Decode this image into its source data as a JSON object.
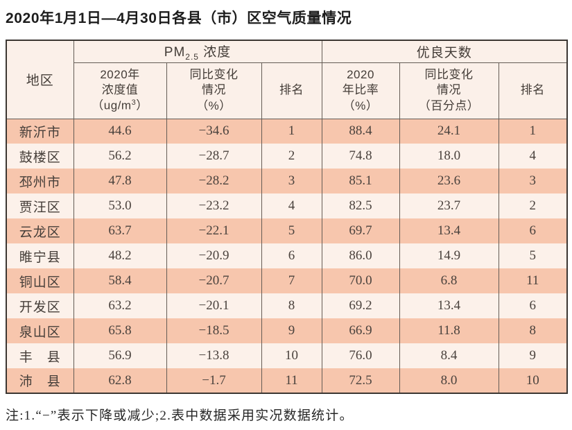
{
  "title": "2020年1月1日—4月30日各县（市）区空气质量情况",
  "note": "注:1.“−”表示下降或减少;2.表中数据采用实况数据统计。",
  "colors": {
    "row_odd_bg": "#f7c6ad",
    "row_even_bg": "#fcf1ea",
    "header_bg": "#fbf0e9",
    "outer_border": "#3b3632",
    "inner_border": "#645c55",
    "text": "#4a423d"
  },
  "table": {
    "corner_header": "地区",
    "group_pm25": {
      "pre": "PM",
      "sub": "2.5",
      "post": " 浓度"
    },
    "group_good_days": "优良天数",
    "columns": {
      "pm25_value": {
        "l1": "2020年",
        "l2": "浓度值",
        "unit_pre": "（ug/m",
        "unit_sup": "3",
        "unit_post": "）"
      },
      "pm25_change": {
        "l1": "同比变化",
        "l2": "情况",
        "l3": "（%）"
      },
      "pm25_rank": "排名",
      "ratio": {
        "l1": "2020",
        "l2": "年比率",
        "l3": "（%）"
      },
      "ratio_change": {
        "l1": "同比变化",
        "l2": "情况",
        "l3": "（百分点）"
      },
      "good_rank": "排名"
    },
    "rows": [
      [
        "新沂市",
        "44.6",
        "−34.6",
        "1",
        "88.4",
        "24.1",
        "1"
      ],
      [
        "鼓楼区",
        "56.2",
        "−28.7",
        "2",
        "74.8",
        "18.0",
        "4"
      ],
      [
        "邳州市",
        "47.8",
        "−28.2",
        "3",
        "85.1",
        "23.6",
        "3"
      ],
      [
        "贾汪区",
        "53.0",
        "−23.2",
        "4",
        "82.5",
        "23.7",
        "2"
      ],
      [
        "云龙区",
        "63.7",
        "−22.1",
        "5",
        "69.7",
        "13.4",
        "6"
      ],
      [
        "睢宁县",
        "48.2",
        "−20.9",
        "6",
        "86.0",
        "14.9",
        "5"
      ],
      [
        "铜山区",
        "58.4",
        "−20.7",
        "7",
        "70.0",
        "6.8",
        "11"
      ],
      [
        "开发区",
        "63.2",
        "−20.1",
        "8",
        "69.2",
        "13.4",
        "6"
      ],
      [
        "泉山区",
        "65.8",
        "−18.5",
        "9",
        "66.9",
        "11.8",
        "8"
      ],
      [
        "丰　县",
        "56.9",
        "−13.8",
        "10",
        "76.0",
        "8.4",
        "9"
      ],
      [
        "沛　县",
        "62.8",
        "−1.7",
        "11",
        "72.5",
        "8.0",
        "10"
      ]
    ]
  }
}
